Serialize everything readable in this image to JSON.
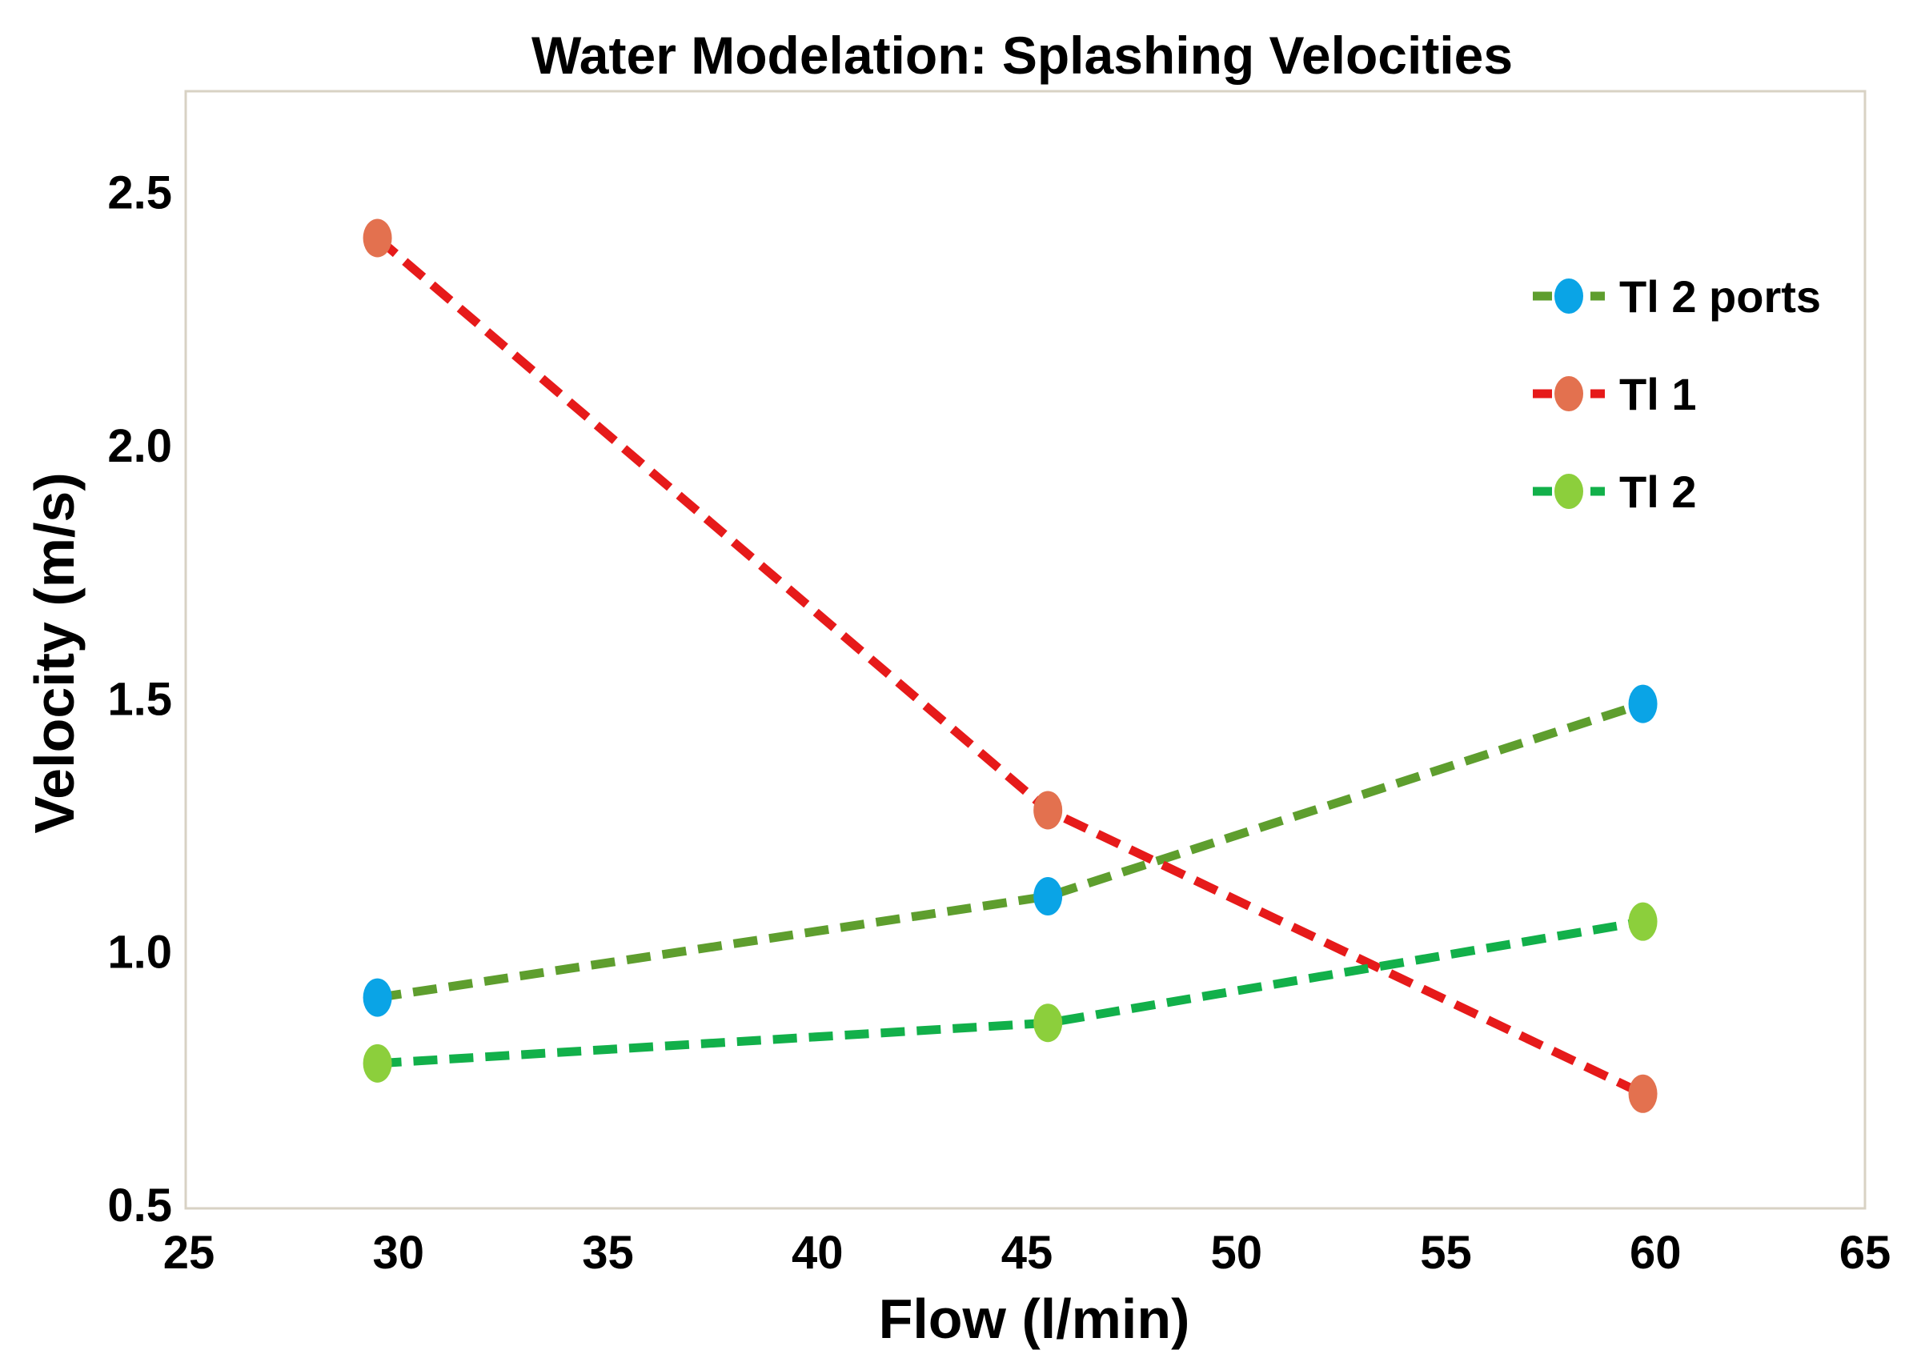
{
  "chart_data": {
    "type": "line",
    "title": "Water Modelation: Splashing Velocities",
    "xlabel": "Flow (l/min)",
    "ylabel": "Velocity (m/s)",
    "xlim": [
      25,
      65
    ],
    "ylim": [
      0.5,
      2.7
    ],
    "xticks": [
      25,
      30,
      35,
      40,
      45,
      50,
      55,
      60,
      65
    ],
    "yticks": [
      0.5,
      1.0,
      1.5,
      2.0,
      2.5
    ],
    "ytick_labels": [
      "0.5",
      "1.0",
      "1.5",
      "2.0",
      "2.5"
    ],
    "grid": false,
    "legend_position": "top-right",
    "series": [
      {
        "name": "Tl 2 ports",
        "line_color": "#5e9e2e",
        "marker_color": "#0aa4e6",
        "x": [
          29.5,
          45.5,
          59.7
        ],
        "y": [
          0.91,
          1.11,
          1.49
        ]
      },
      {
        "name": "Tl 1",
        "line_color": "#e61a1a",
        "marker_color": "#e3714f",
        "x": [
          29.5,
          45.5,
          59.7
        ],
        "y": [
          2.41,
          1.28,
          0.72
        ]
      },
      {
        "name": "Tl 2",
        "line_color": "#12b04a",
        "marker_color": "#8ccf3c",
        "x": [
          29.5,
          45.5,
          59.7
        ],
        "y": [
          0.78,
          0.86,
          1.06
        ]
      }
    ]
  }
}
